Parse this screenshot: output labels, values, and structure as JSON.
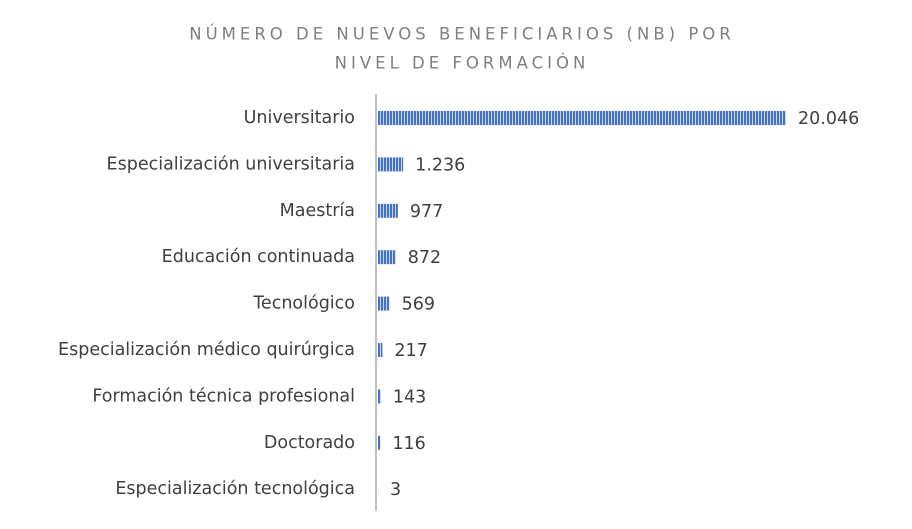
{
  "chart_data": {
    "type": "bar",
    "orientation": "horizontal",
    "title": [
      "NÚMERO DE NUEVOS BENEFICIARIOS (NB) POR",
      "NIVEL DE FORMACIÓN"
    ],
    "categories": [
      "Universitario",
      "Especialización universitaria",
      "Maestría",
      "Educación continuada",
      "Tecnológico",
      "Especialización médico quirúrgica",
      "Formación técnica profesional",
      "Doctorado",
      "Especialización tecnológica"
    ],
    "values": [
      20046,
      1236,
      977,
      872,
      569,
      217,
      143,
      116,
      3
    ],
    "value_labels": [
      "20.046",
      "1.236",
      "977",
      "872",
      "569",
      "217",
      "143",
      "116",
      "3"
    ],
    "color": "#4472c4"
  }
}
